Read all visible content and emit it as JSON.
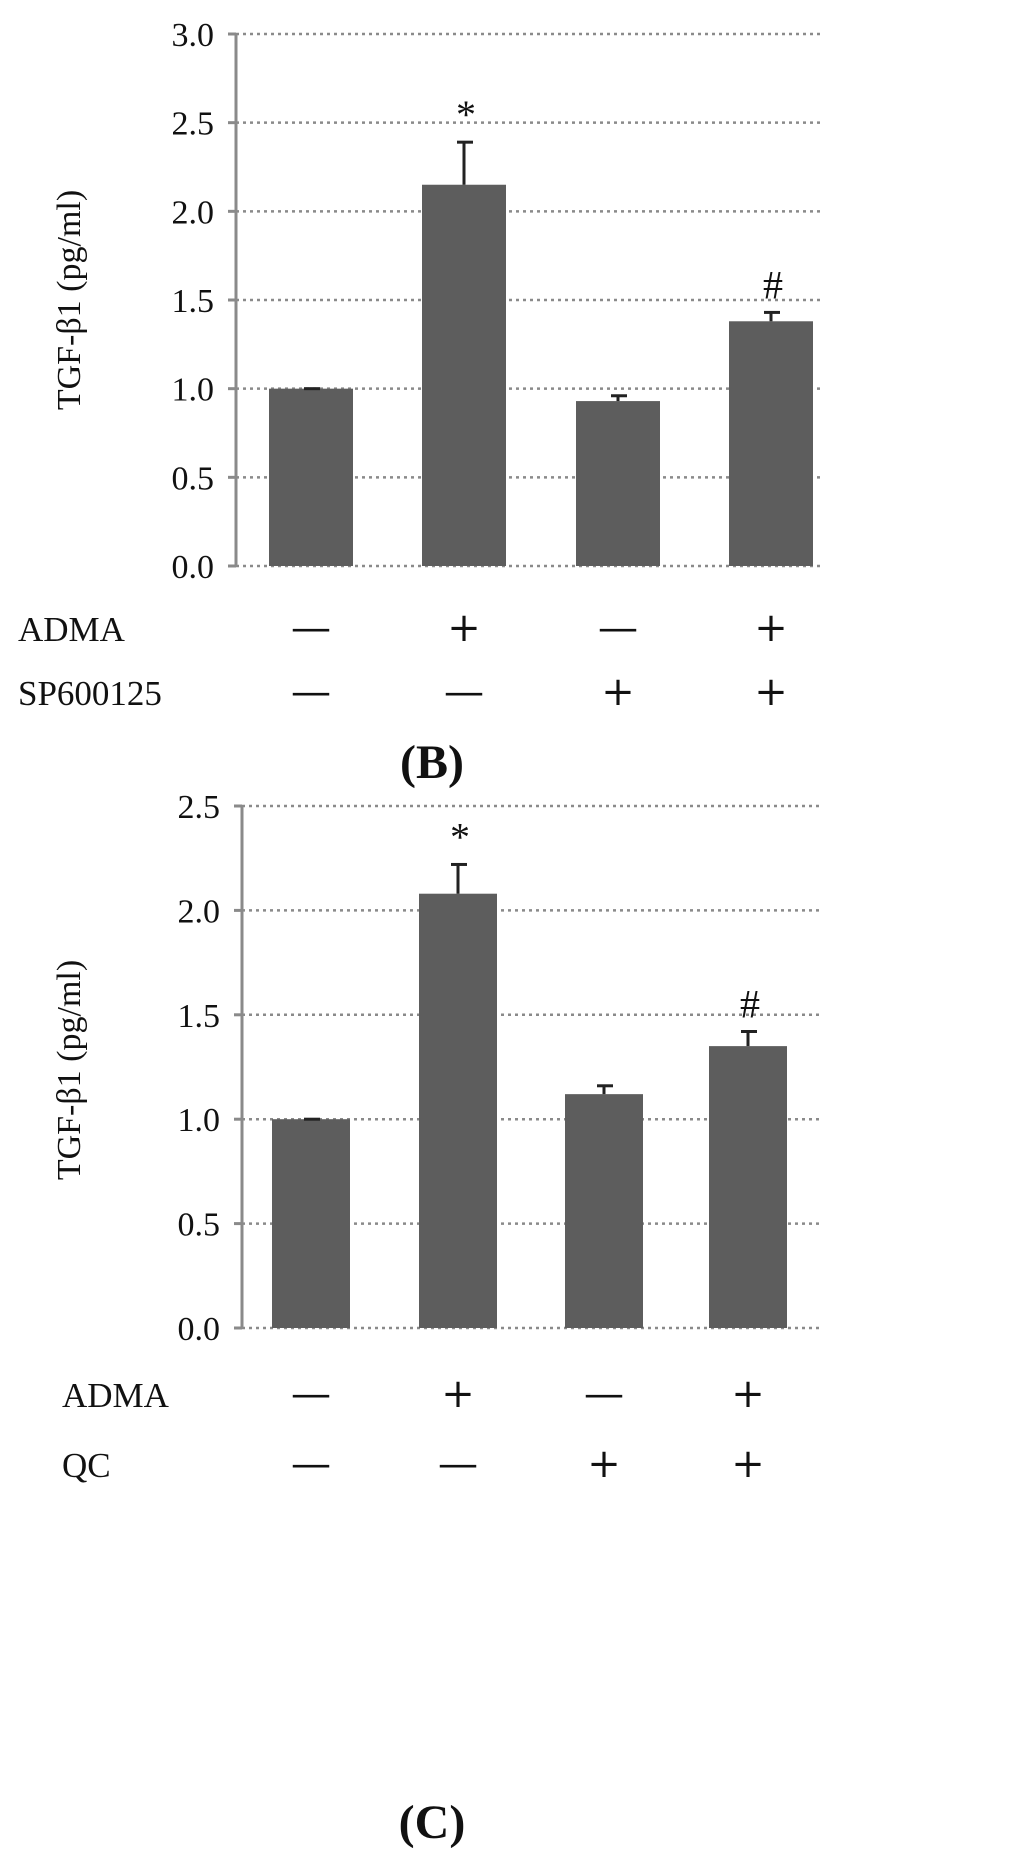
{
  "chart_data": [
    {
      "type": "bar",
      "title": "",
      "ylabel": "TGF-β1 (pg/ml)",
      "ylim": [
        0,
        3.0
      ],
      "yticks": [
        "0.0",
        "0.5",
        "1.0",
        "1.5",
        "2.0",
        "2.5",
        "3.0"
      ],
      "ytick_values": [
        0,
        0.5,
        1.0,
        1.5,
        2.0,
        2.5,
        3.0
      ],
      "values": [
        1.0,
        2.15,
        0.93,
        1.38
      ],
      "errors": [
        0.0,
        0.24,
        0.03,
        0.05
      ],
      "annotations": [
        "",
        "*",
        "",
        "#"
      ],
      "conditions": [
        {
          "label": "ADMA",
          "marks": [
            "—",
            "+",
            "—",
            "+"
          ]
        },
        {
          "label": "SP600125",
          "marks": [
            "—",
            "—",
            "+",
            "+"
          ]
        }
      ],
      "grid": true
    },
    {
      "type": "bar",
      "panel_label": "(B)",
      "ylabel": "TGF-β1 (pg/ml)",
      "ylim": [
        0,
        2.5
      ],
      "yticks": [
        "0.0",
        "0.5",
        "1.0",
        "1.5",
        "2.0",
        "2.5"
      ],
      "ytick_values": [
        0,
        0.5,
        1.0,
        1.5,
        2.0,
        2.5
      ],
      "values": [
        1.0,
        2.08,
        1.12,
        1.35
      ],
      "errors": [
        0.0,
        0.14,
        0.04,
        0.07
      ],
      "annotations": [
        "",
        "*",
        "",
        "#"
      ],
      "conditions": [
        {
          "label": "ADMA",
          "marks": [
            "—",
            "+",
            "—",
            "+"
          ]
        },
        {
          "label": "QC",
          "marks": [
            "—",
            "—",
            "+",
            "+"
          ]
        }
      ],
      "bottom_label": "(C)",
      "grid": true
    }
  ]
}
